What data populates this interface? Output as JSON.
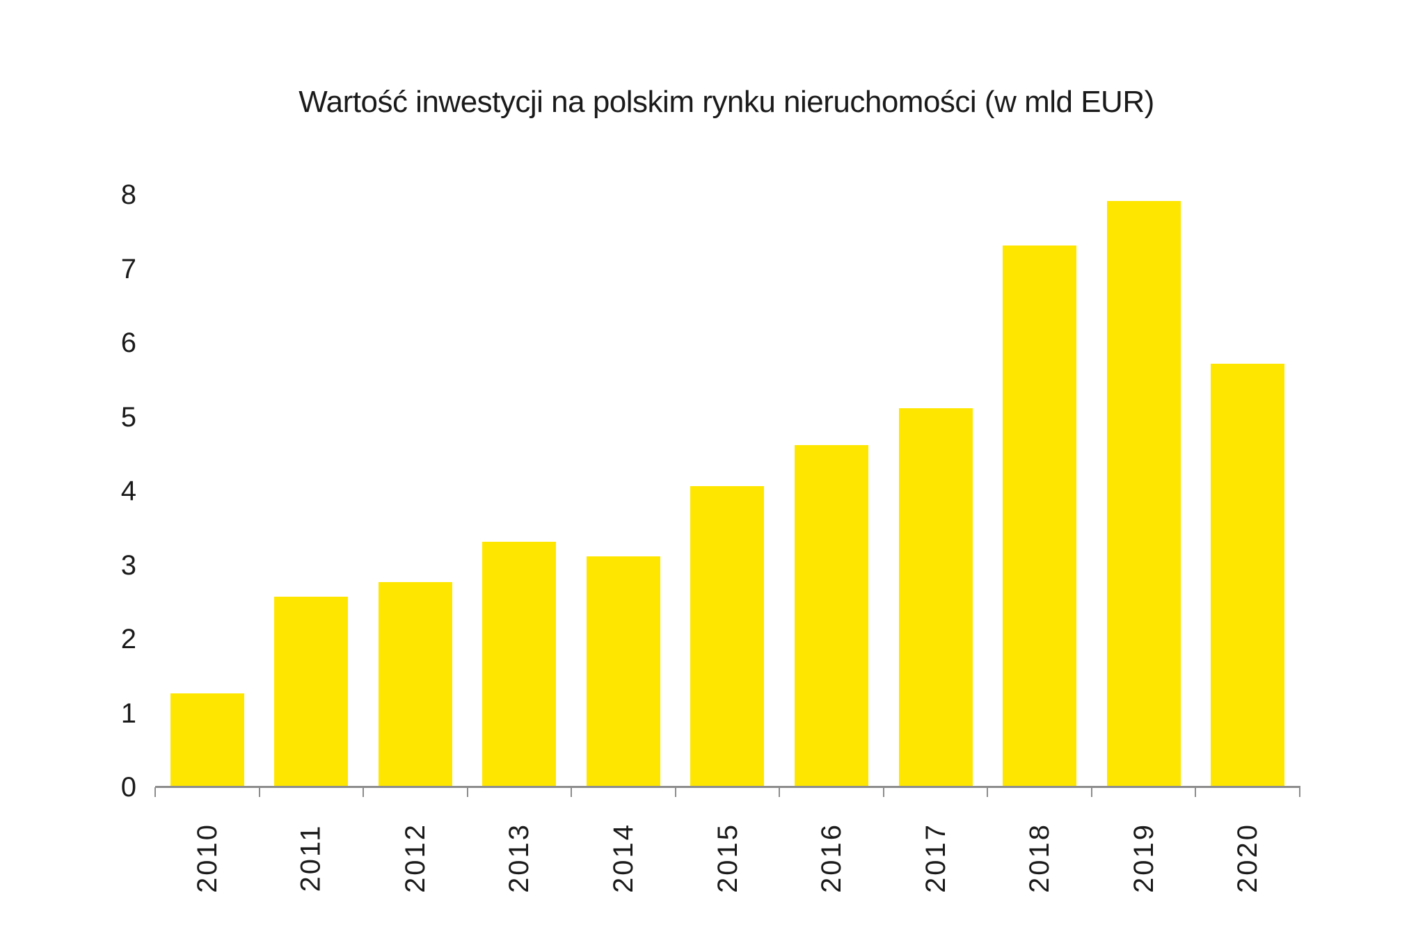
{
  "title": "Wartość inwestycji na polskim rynku nieruchomości (w mld EUR)",
  "colors": {
    "bar": "#FFE600",
    "axis": "#8C8C8C",
    "text": "#1A1A1A",
    "background": "#FFFFFF"
  },
  "chart_data": {
    "type": "bar",
    "title": "Wartość inwestycji na polskim rynku nieruchomości (w mld EUR)",
    "categories": [
      "2010",
      "2011",
      "2012",
      "2013",
      "2014",
      "2015",
      "2016",
      "2017",
      "2018",
      "2019",
      "2020"
    ],
    "values": [
      1.25,
      2.55,
      2.75,
      3.3,
      3.1,
      4.05,
      4.6,
      5.1,
      7.3,
      7.9,
      5.7
    ],
    "xlabel": "",
    "ylabel": "",
    "ylim": [
      0,
      8
    ],
    "yticks": [
      0,
      1,
      2,
      3,
      4,
      5,
      6,
      7,
      8
    ],
    "grid": false,
    "legend": false,
    "bar_color": "#FFE600",
    "x_tick_rotation": 90
  }
}
